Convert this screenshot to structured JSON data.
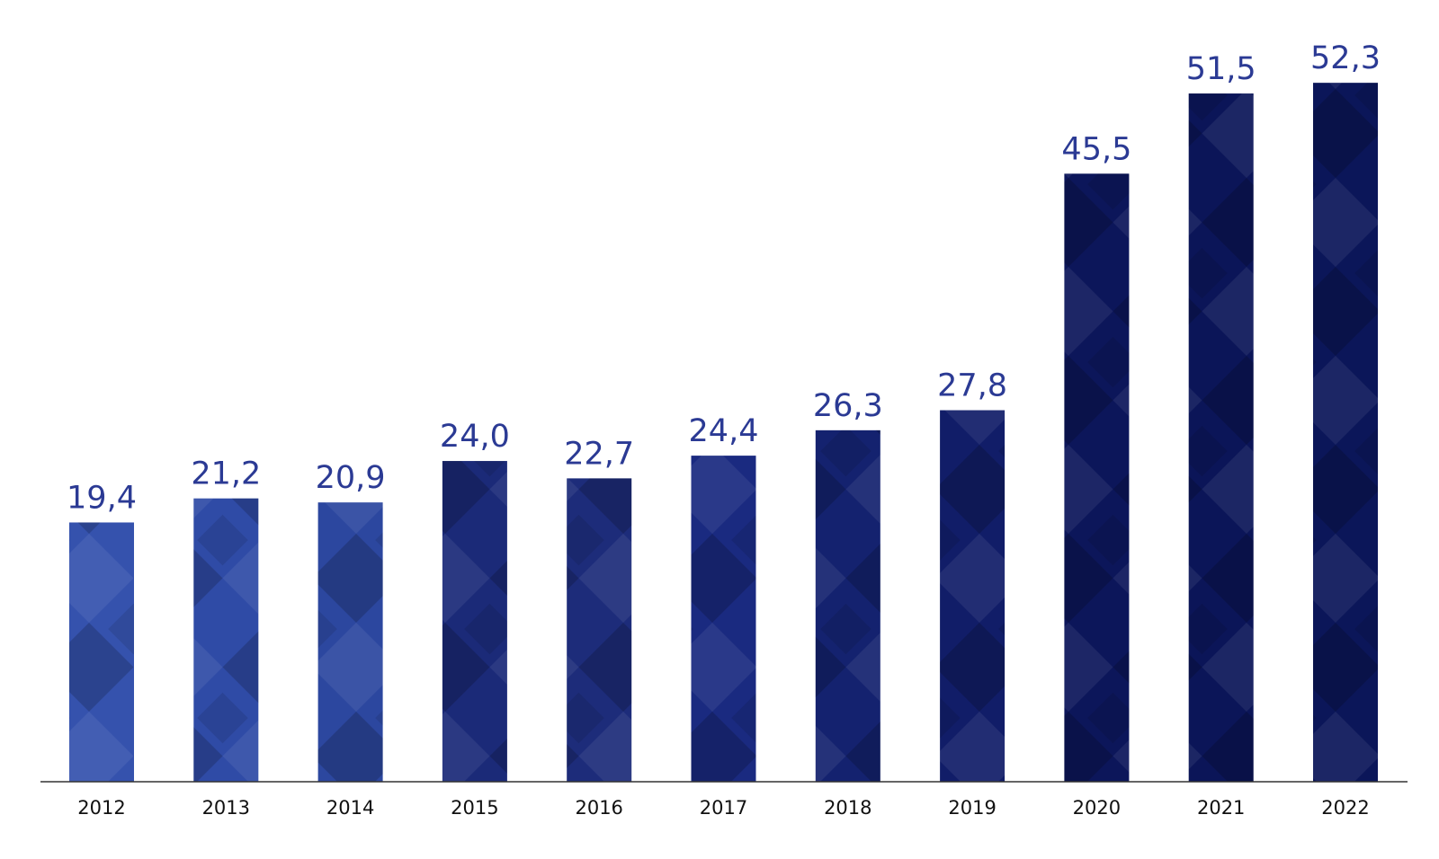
{
  "chart_data": {
    "type": "bar",
    "categories": [
      "2012",
      "2013",
      "2014",
      "2015",
      "2016",
      "2017",
      "2018",
      "2019",
      "2020",
      "2021",
      "2022"
    ],
    "values": [
      19.4,
      21.2,
      20.9,
      24.0,
      22.7,
      24.4,
      26.3,
      27.8,
      45.5,
      51.5,
      52.3
    ],
    "value_labels": [
      "19,4",
      "21,2",
      "20,9",
      "24,0",
      "22,7",
      "24,4",
      "26,3",
      "27,8",
      "45,5",
      "51,5",
      "52,3"
    ],
    "colors": [
      "#3552ad",
      "#2f4ba6",
      "#2c479f",
      "#1b2a78",
      "#1d2c7a",
      "#1a2a80",
      "#14226f",
      "#111d68",
      "#0c165a",
      "#0b1558",
      "#0b1659"
    ],
    "ylim": [
      0,
      55
    ]
  }
}
